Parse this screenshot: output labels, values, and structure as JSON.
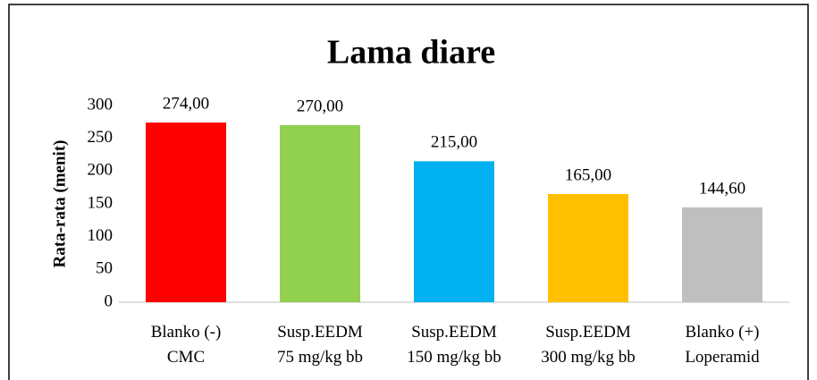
{
  "chart_data": {
    "type": "bar",
    "title": "Lama diare",
    "y_label": "Rata-rata (menit)",
    "categories": [
      "Blanko (-)\nCMC",
      "Susp.EEDM\n75 mg/kg bb",
      "Susp.EEDM\n150 mg/kg bb",
      "Susp.EEDM\n300 mg/kg bb",
      "Blanko (+)\nLoperamid"
    ],
    "values": [
      274,
      270,
      215,
      165,
      144.6
    ],
    "value_labels": [
      "274,00",
      "270,00",
      "215,00",
      "165,00",
      "144,60"
    ],
    "colors": [
      "#ff0000",
      "#92d050",
      "#00b0f0",
      "#ffc000",
      "#bfbfbf"
    ],
    "ylim": [
      0,
      300
    ],
    "yticks": [
      0,
      50,
      100,
      150,
      200,
      250,
      300
    ],
    "grid": false
  }
}
